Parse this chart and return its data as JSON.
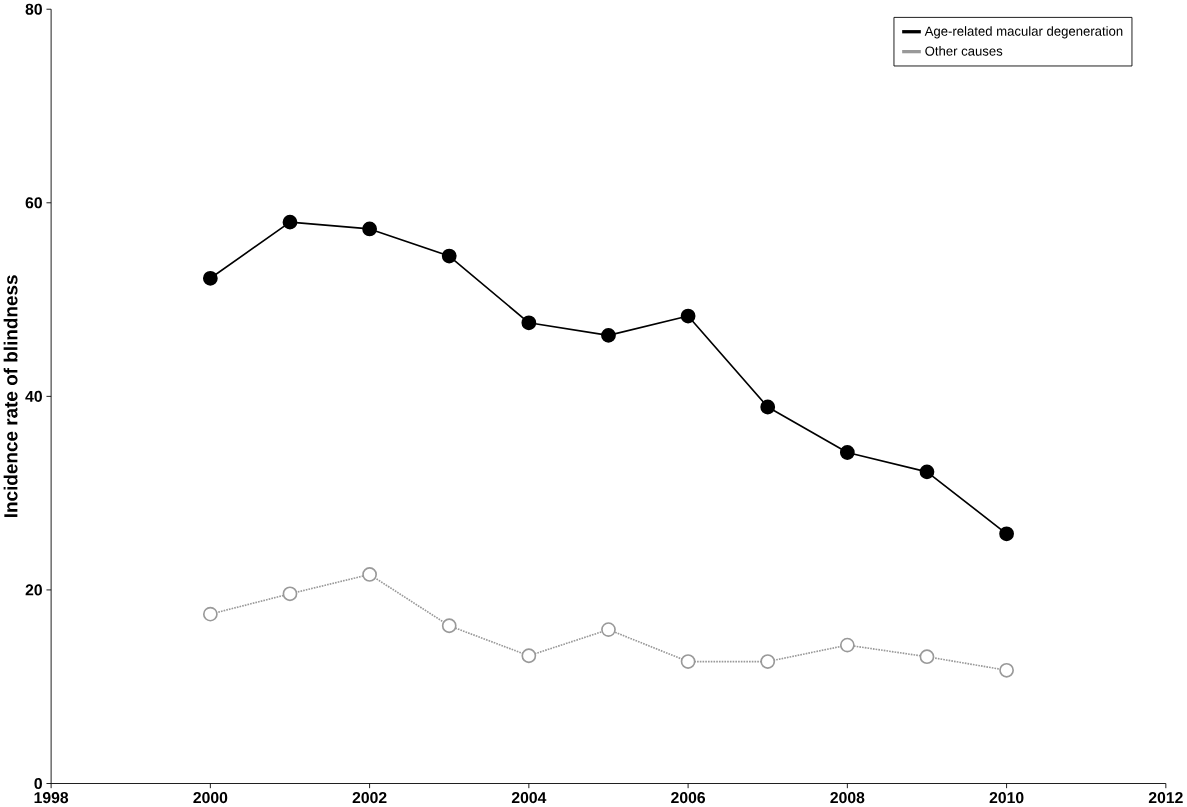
{
  "chart_data": {
    "type": "line",
    "ylabel": "Incidence rate of blindness",
    "x": [
      2000,
      2001,
      2002,
      2003,
      2004,
      2005,
      2006,
      2007,
      2008,
      2009,
      2010
    ],
    "series": [
      {
        "name": "Age-related macular degeneration",
        "color": "#000000",
        "line_style": "solid",
        "values": [
          52.2,
          58.0,
          57.3,
          54.5,
          47.6,
          46.3,
          48.3,
          38.9,
          34.2,
          32.2,
          25.8
        ]
      },
      {
        "name": "Other causes",
        "color": "#999999",
        "line_style": "dotted",
        "values": [
          17.5,
          19.6,
          21.6,
          16.3,
          13.2,
          15.9,
          12.6,
          12.6,
          14.3,
          13.1,
          11.7
        ]
      }
    ],
    "xlim": [
      1998,
      2012
    ],
    "ylim": [
      0,
      80
    ],
    "xticks": [
      1998,
      2000,
      2002,
      2004,
      2006,
      2008,
      2010,
      2012
    ],
    "yticks": [
      0,
      20,
      40,
      60,
      80
    ],
    "marker": "circle",
    "legend": "top right",
    "grid": false
  }
}
